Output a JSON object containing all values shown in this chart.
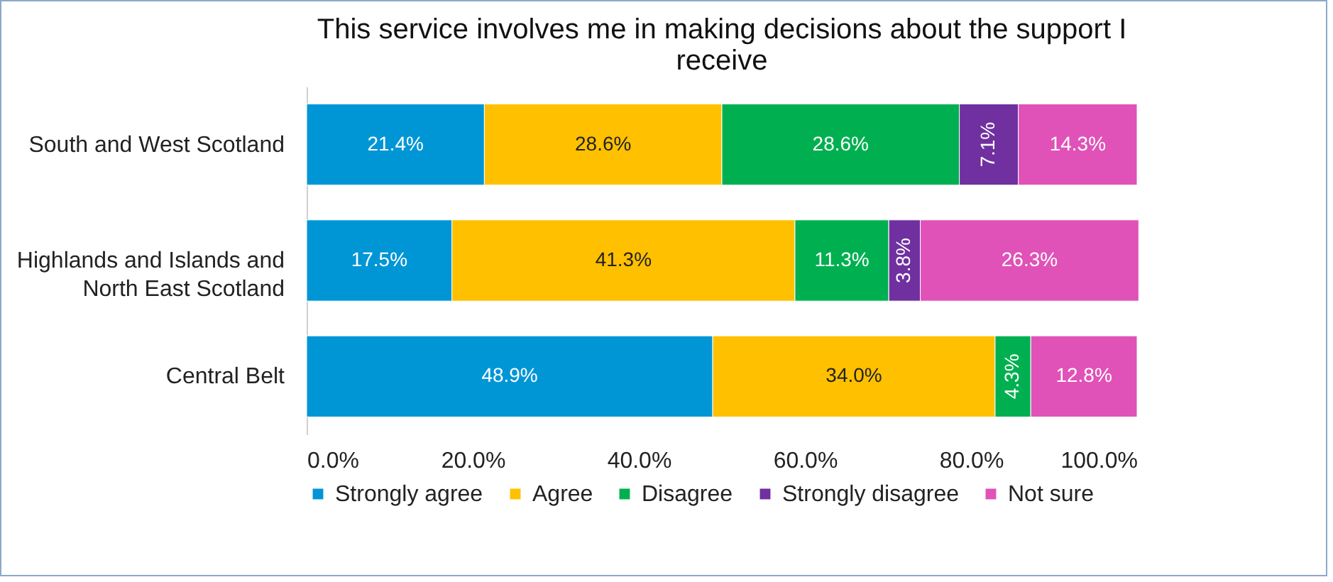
{
  "chart_data": {
    "type": "bar",
    "orientation": "horizontal",
    "stacked": true,
    "title": "This service involves me in making decisions about the support I receive",
    "categories": [
      "South and West Scotland",
      "Highlands and Islands and North East Scotland",
      "Central Belt"
    ],
    "series": [
      {
        "name": "Strongly agree",
        "color": "#0096d6",
        "values": [
          21.4,
          17.5,
          48.9
        ],
        "value_labels": [
          "21.4%",
          "17.5%",
          "48.9%"
        ]
      },
      {
        "name": "Agree",
        "color": "#ffc000",
        "values": [
          28.6,
          41.3,
          34.0
        ],
        "value_labels": [
          "28.6%",
          "41.3%",
          "34.0%"
        ]
      },
      {
        "name": "Disagree",
        "color": "#00b050",
        "values": [
          28.6,
          11.3,
          4.3
        ],
        "value_labels": [
          "28.6%",
          "11.3%",
          "4.3%"
        ]
      },
      {
        "name": "Strongly disagree",
        "color": "#7030a0",
        "values": [
          7.1,
          3.8,
          null
        ],
        "value_labels": [
          "7.1%",
          "3.8%",
          null
        ]
      },
      {
        "name": "Not sure",
        "color": "#e052b8",
        "values": [
          14.3,
          26.3,
          12.8
        ],
        "value_labels": [
          "14.3%",
          "26.3%",
          "12.8%"
        ]
      }
    ],
    "xlim": [
      0,
      100
    ],
    "xticks": [
      {
        "value": 0,
        "label": "0.0%"
      },
      {
        "value": 20,
        "label": "20.0%"
      },
      {
        "value": 40,
        "label": "40.0%"
      },
      {
        "value": 60,
        "label": "60.0%"
      },
      {
        "value": 80,
        "label": "80.0%"
      },
      {
        "value": 100,
        "label": "100.0%"
      }
    ],
    "legend": "bottom"
  }
}
